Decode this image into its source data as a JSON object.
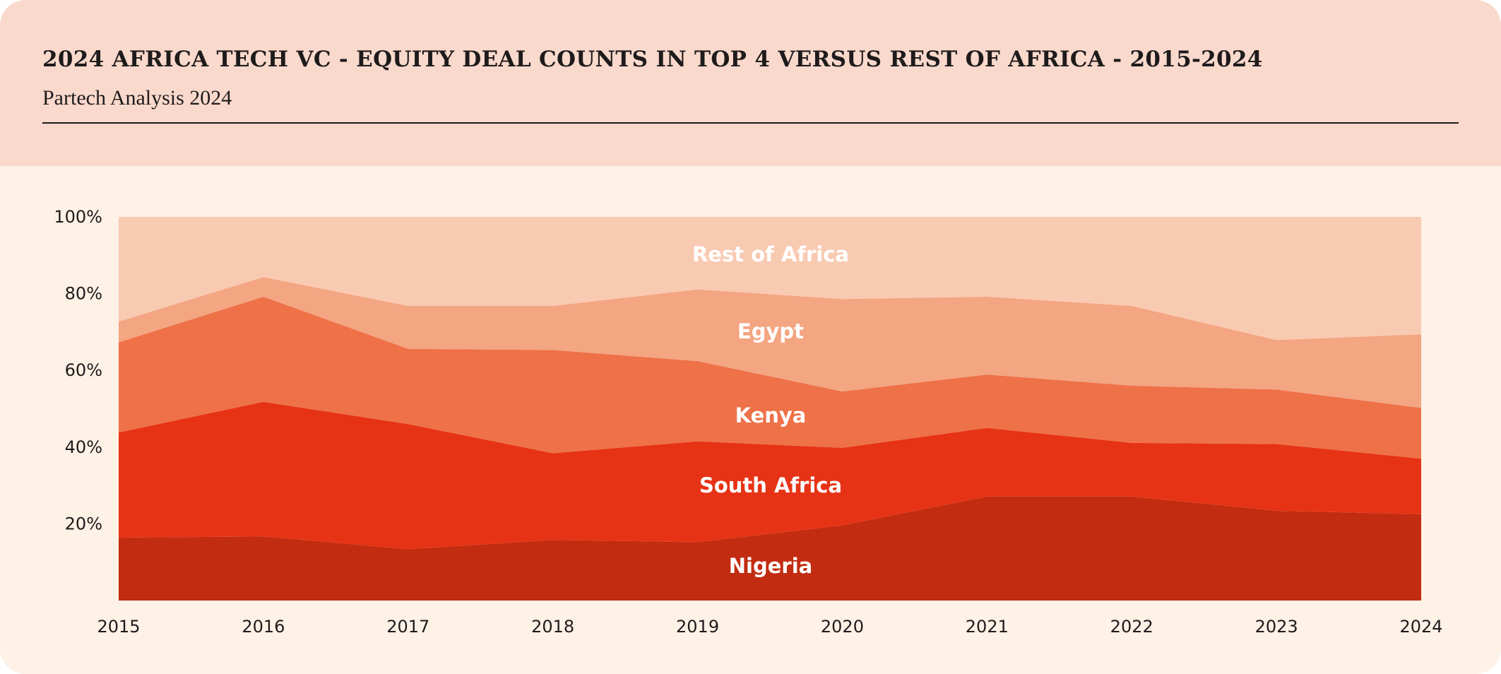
{
  "header": {
    "title": "2024 AFRICA TECH VC - EQUITY DEAL COUNTS IN TOP 4 VERSUS REST OF AFRICA - 2015-2024",
    "subtitle": "Partech Analysis 2024"
  },
  "chart_data": {
    "type": "area",
    "stacked": true,
    "normalized": true,
    "x": [
      "2015",
      "2016",
      "2017",
      "2018",
      "2019",
      "2020",
      "2021",
      "2022",
      "2023",
      "2024"
    ],
    "ylim": [
      0,
      100
    ],
    "yticks": [
      "20%",
      "40%",
      "60%",
      "80%",
      "100%"
    ],
    "ytick_values": [
      20,
      40,
      60,
      80,
      100
    ],
    "grid": false,
    "legend": "inline labels",
    "series": [
      {
        "name": "Nigeria",
        "color": "#c22c10",
        "values": [
          16.4,
          16.7,
          13.4,
          15.8,
          15.2,
          19.6,
          27.1,
          27.1,
          23.4,
          22.5
        ]
      },
      {
        "name": "South Africa",
        "color": "#e73315",
        "values": [
          27.4,
          35.1,
          32.6,
          22.6,
          26.3,
          20.2,
          17.9,
          14.0,
          17.4,
          14.5
        ]
      },
      {
        "name": "Kenya",
        "color": "#ee7148",
        "values": [
          23.5,
          27.4,
          19.6,
          26.9,
          20.9,
          14.7,
          13.9,
          14.9,
          14.2,
          13.2
        ]
      },
      {
        "name": "Egypt",
        "color": "#f4a582",
        "values": [
          5.4,
          5.1,
          11.2,
          11.5,
          18.7,
          24.1,
          20.3,
          20.8,
          12.9,
          19.2
        ]
      },
      {
        "name": "Rest of Africa",
        "color": "#f9cab2",
        "values": [
          27.3,
          15.7,
          23.2,
          23.2,
          18.9,
          21.4,
          20.8,
          23.2,
          32.1,
          30.6
        ]
      }
    ]
  }
}
